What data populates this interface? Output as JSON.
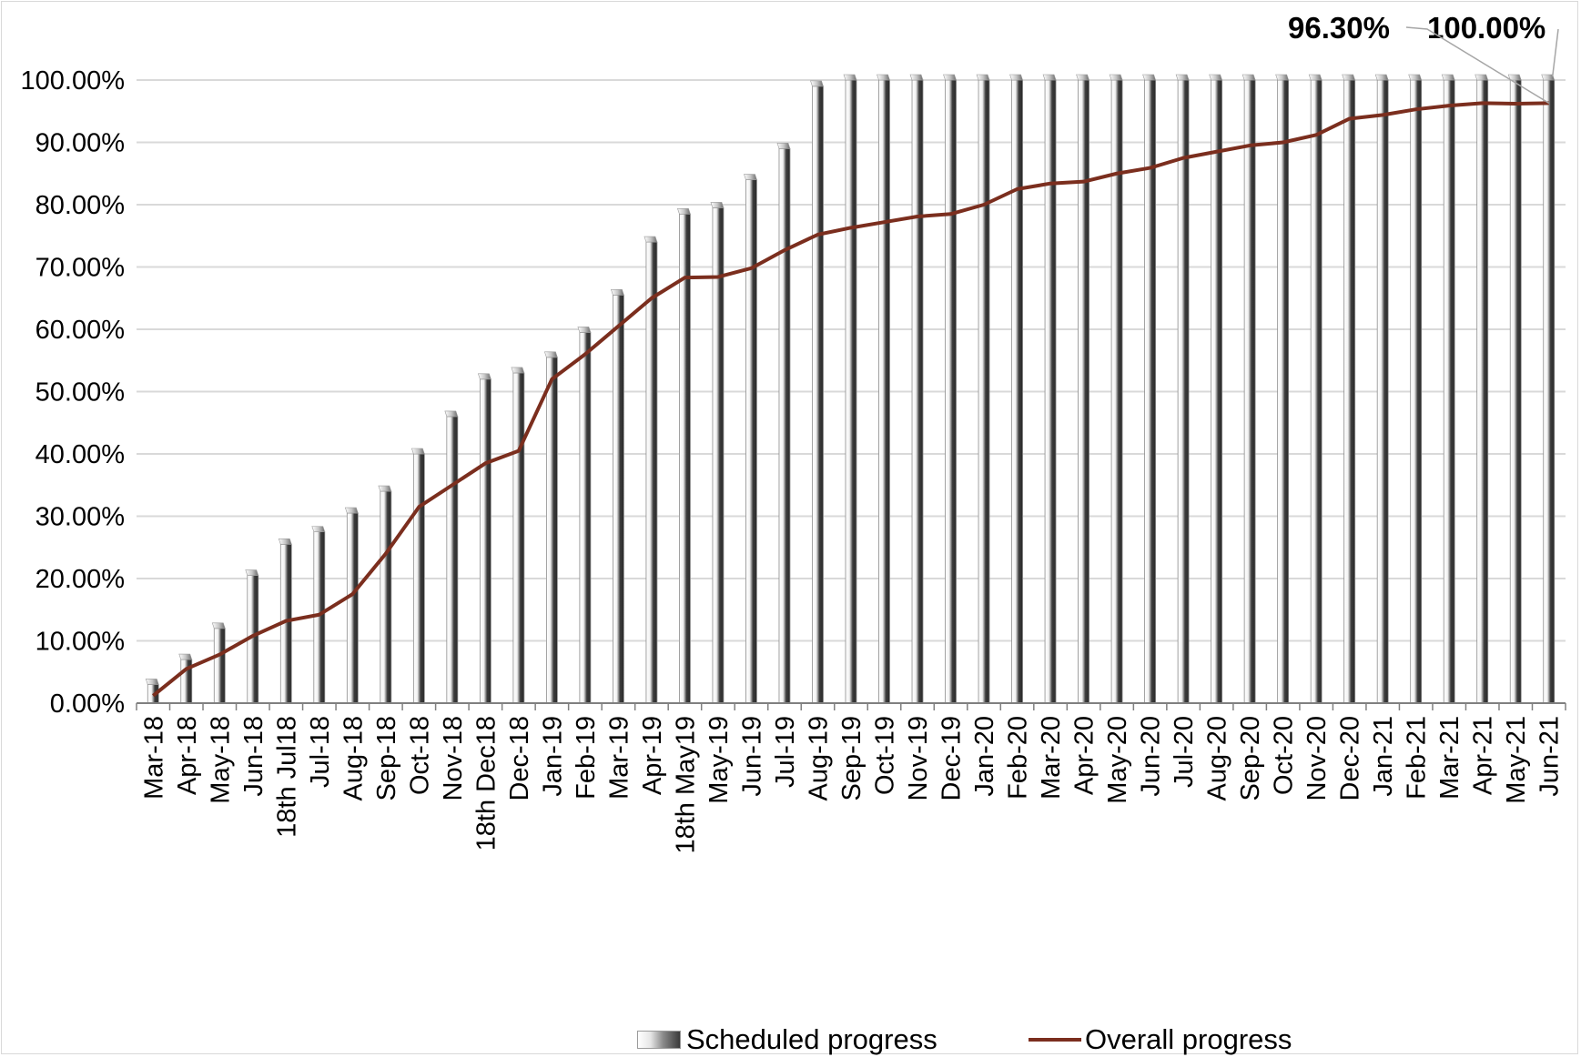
{
  "colors": {
    "overall_line": "#7b2e1e",
    "gridline": "#d9d9d9",
    "axis": "#808080"
  },
  "chart_data": {
    "type": "bar",
    "categories": [
      "Mar-18",
      "Apr-18",
      "May-18",
      "Jun-18",
      "18th Jul18",
      "Jul-18",
      "Aug-18",
      "Sep-18",
      "Oct-18",
      "Nov-18",
      "18th Dec18",
      "Dec-18",
      "Jan-19",
      "Feb-19",
      "Mar-19",
      "Apr-19",
      "18th May19",
      "May-19",
      "Jun-19",
      "Jul-19",
      "Aug-19",
      "Sep-19",
      "Oct-19",
      "Nov-19",
      "Dec-19",
      "Jan-20",
      "Feb-20",
      "Mar-20",
      "Apr-20",
      "May-20",
      "Jun-20",
      "Jul-20",
      "Aug-20",
      "Sep-20",
      "Oct-20",
      "Nov-20",
      "Dec-20",
      "Jan-21",
      "Feb-21",
      "Mar-21",
      "Apr-21",
      "May-21",
      "Jun-21"
    ],
    "series": [
      {
        "name": "Scheduled progress",
        "render": "bar",
        "values": [
          3,
          7,
          12,
          20.5,
          25.5,
          27.5,
          30.5,
          34,
          40,
          46,
          52,
          53,
          55.5,
          59.5,
          65.5,
          74,
          78.5,
          79.5,
          84,
          89,
          99,
          100,
          100,
          100,
          100,
          100,
          100,
          100,
          100,
          100,
          100,
          100,
          100,
          100,
          100,
          100,
          100,
          100,
          100,
          100,
          100,
          100,
          100
        ]
      },
      {
        "name": "Overall progress",
        "render": "line",
        "values": [
          1.2,
          5.5,
          7.8,
          10.8,
          13.2,
          14.2,
          17.5,
          24,
          31.5,
          35,
          38.5,
          40.5,
          52,
          56,
          60.5,
          65,
          68.3,
          68.4,
          69.8,
          72.7,
          75.2,
          76.3,
          77.2,
          78.1,
          78.5,
          80,
          82.5,
          83.4,
          83.7,
          85,
          85.9,
          87.5,
          88.5,
          89.5,
          90,
          91.2,
          93.8,
          94.4,
          95.3,
          95.9,
          96.3,
          96.2,
          96.3
        ]
      }
    ],
    "ylim": [
      0,
      100
    ],
    "yticks": [
      "0.00%",
      "10.00%",
      "20.00%",
      "30.00%",
      "40.00%",
      "50.00%",
      "60.00%",
      "70.00%",
      "80.00%",
      "90.00%",
      "100.00%"
    ],
    "grid": true,
    "legend": {
      "placement": "bottom",
      "entries": [
        "Scheduled progress",
        "Overall progress"
      ]
    },
    "annotations": [
      {
        "text": "96.30%",
        "series": "Overall progress",
        "category": "Jun-21"
      },
      {
        "text": "100.00%",
        "series": "Scheduled progress",
        "category": "Jun-21"
      }
    ]
  }
}
